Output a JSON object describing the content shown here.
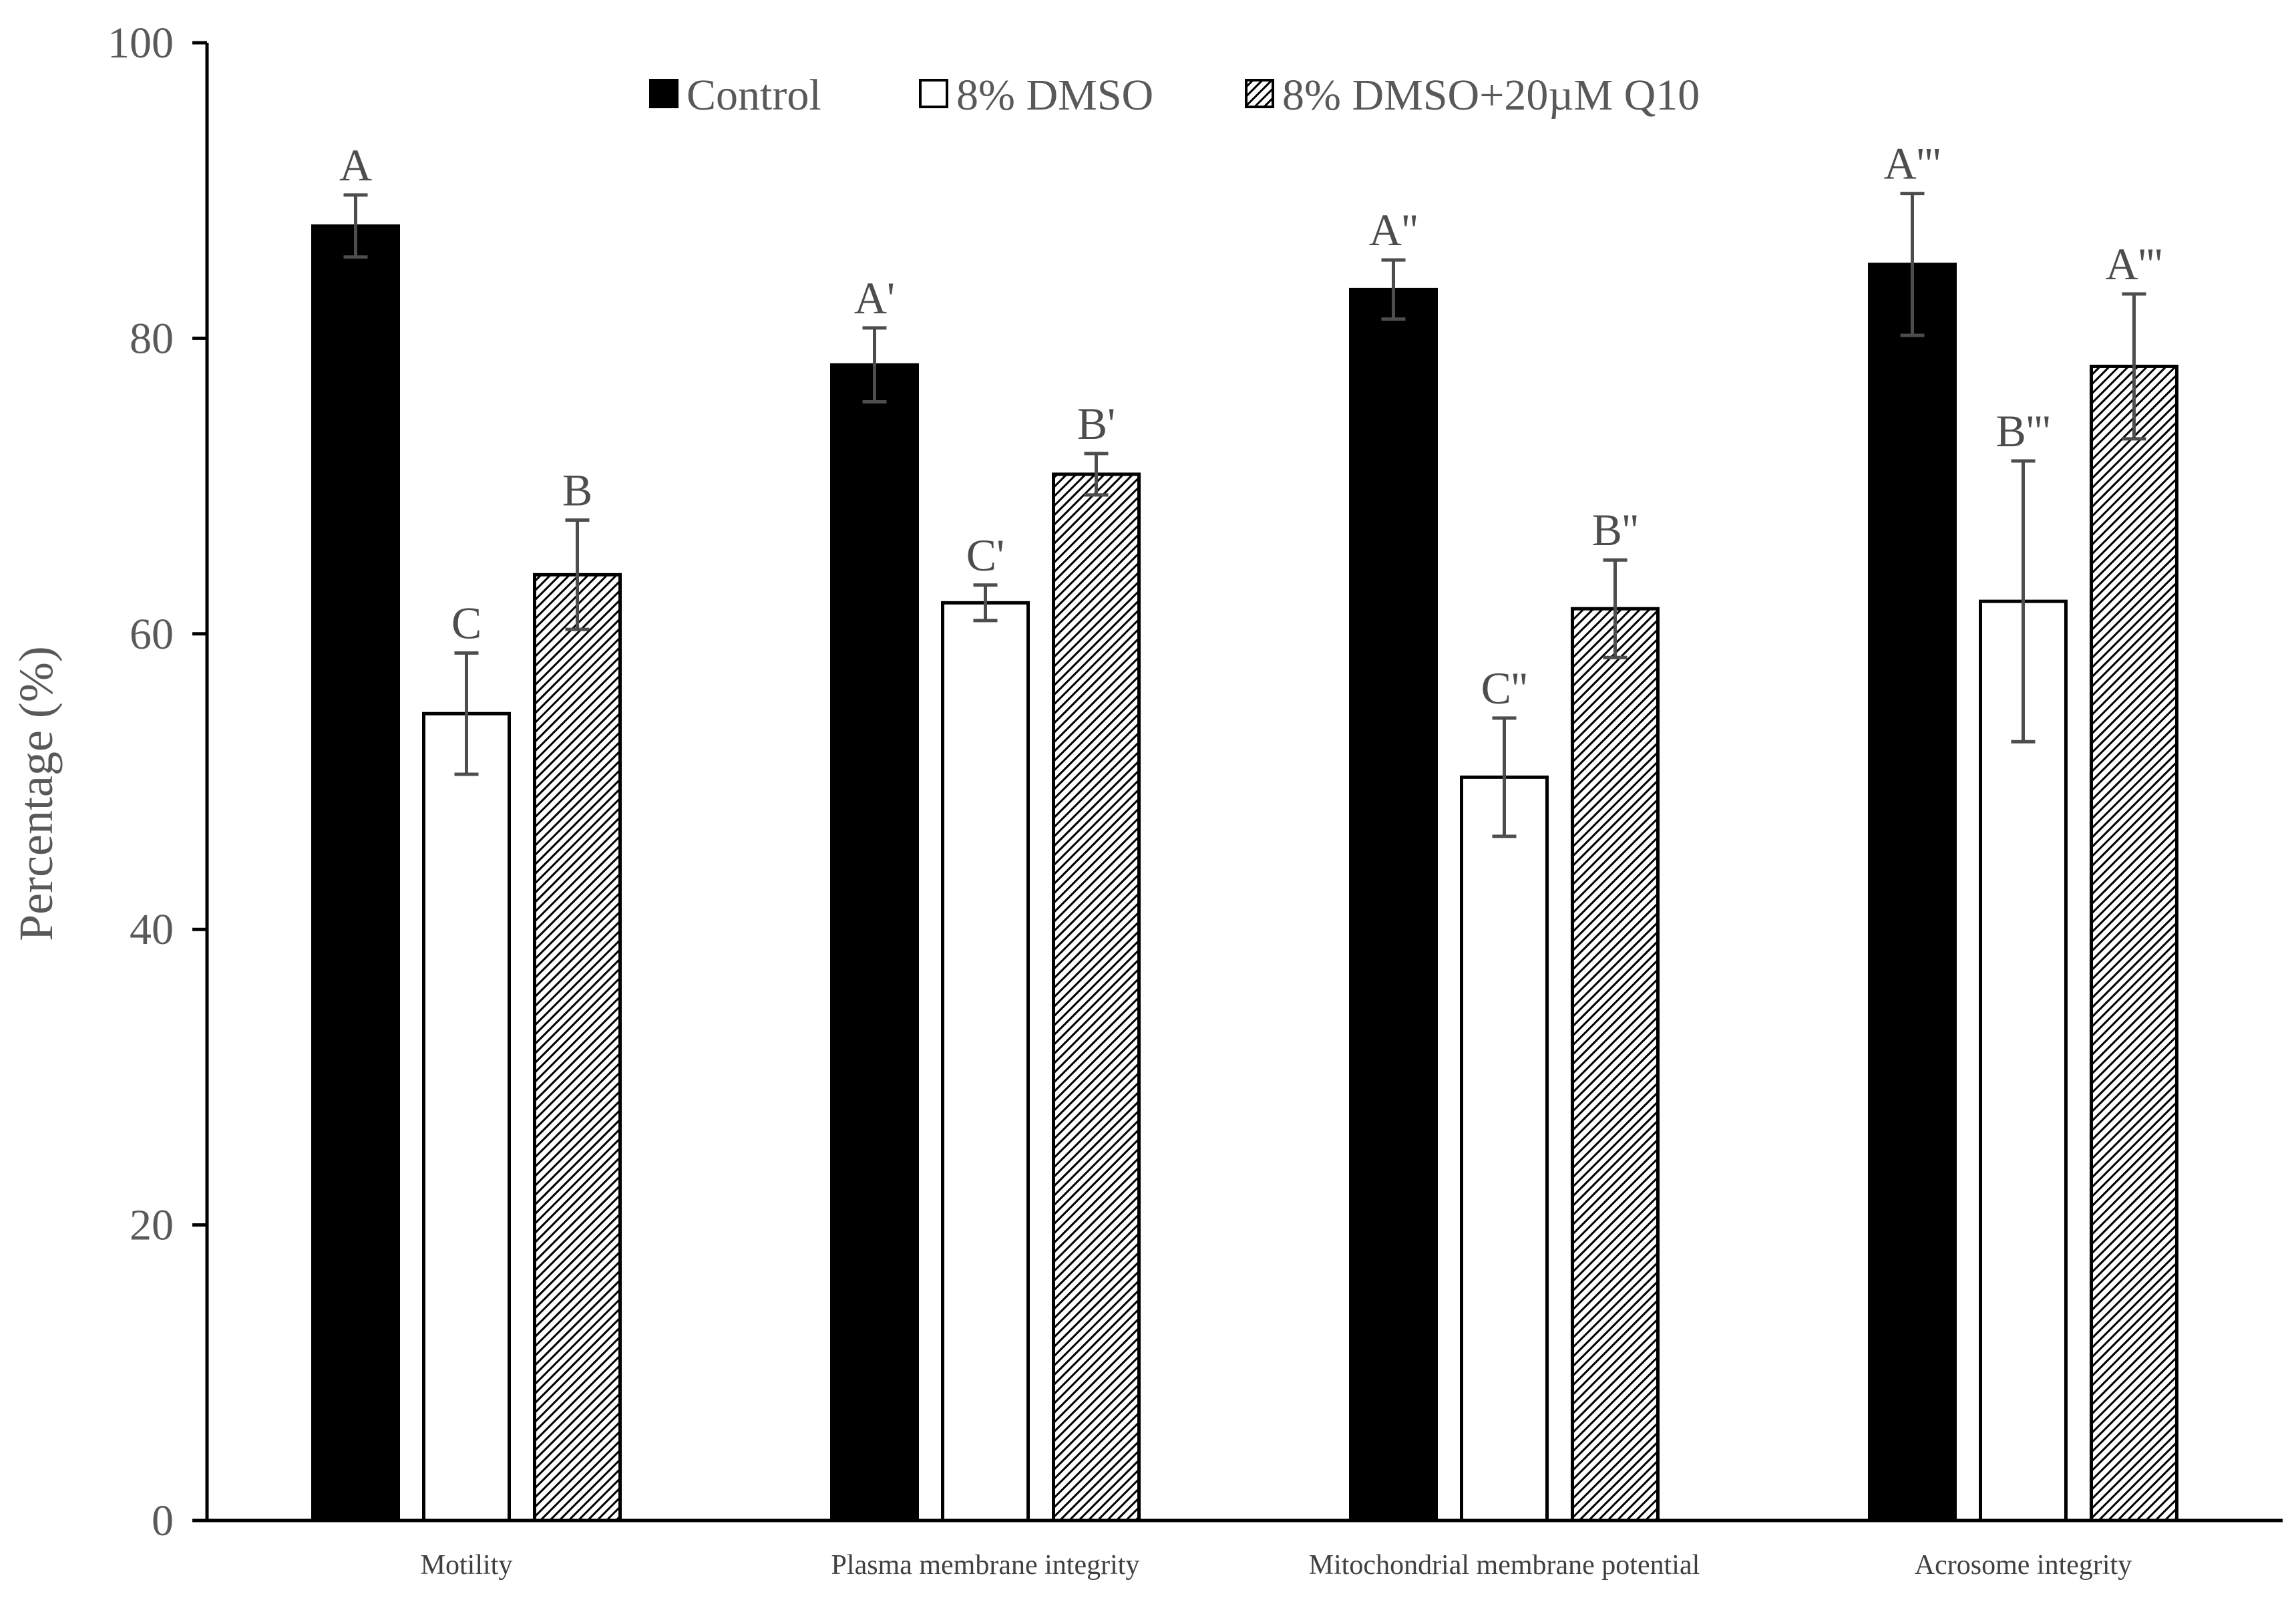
{
  "chart_data": {
    "type": "bar",
    "title": "",
    "xlabel": "",
    "ylabel": "Percentage (%)",
    "ylim": [
      0,
      100
    ],
    "yticks": [
      0,
      20,
      40,
      60,
      80,
      100
    ],
    "grid": false,
    "legend_position": "top-center",
    "categories": [
      "Motility",
      "Plasma membrane integrity",
      "Mitochondrial membrane potential",
      "Acrosome integrity"
    ],
    "series": [
      {
        "name": "Control",
        "fill": "solid",
        "color": "#000000",
        "values": [
          87.6,
          78.2,
          83.3,
          85.0
        ],
        "errors": [
          2.1,
          2.5,
          2.0,
          4.8
        ],
        "labels": [
          "A",
          "A'",
          "A''",
          "A'''"
        ]
      },
      {
        "name": "8% DMSO",
        "fill": "none",
        "color": "#ffffff",
        "values": [
          54.6,
          62.1,
          50.3,
          62.2
        ],
        "errors": [
          4.1,
          1.2,
          4.0,
          9.5
        ],
        "labels": [
          "C",
          "C'",
          "C''",
          "B'''"
        ]
      },
      {
        "name": "8% DMSO+20µM Q10",
        "fill": "hatch",
        "color": "#000000",
        "values": [
          64.0,
          70.8,
          61.7,
          78.1
        ],
        "errors": [
          3.7,
          1.4,
          3.3,
          4.9
        ],
        "labels": [
          "B",
          "B'",
          "B''",
          "A'''"
        ]
      }
    ]
  }
}
